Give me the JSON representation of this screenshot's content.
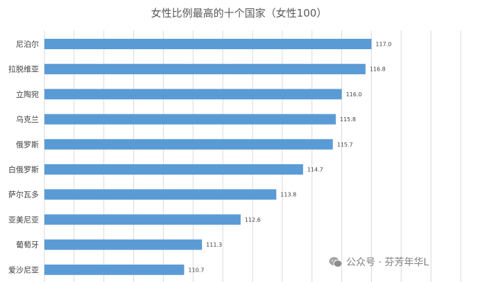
{
  "chart_data": {
    "type": "bar",
    "orientation": "horizontal",
    "title": "女性比例最高的十个国家（女性100）",
    "categories": [
      "尼泊尔",
      "拉脱维亚",
      "立陶宛",
      "乌克兰",
      "俄罗斯",
      "白俄罗斯",
      "萨尔瓦多",
      "亚美尼亚",
      "葡萄牙",
      "爱沙尼亚"
    ],
    "values": [
      117.0,
      116.8,
      116.0,
      115.8,
      115.7,
      114.7,
      113.8,
      112.6,
      111.3,
      110.7
    ],
    "value_labels": [
      "117.0",
      "116.8",
      "116.0",
      "115.8",
      "115.7",
      "114.7",
      "113.8",
      "112.6",
      "111.3",
      "110.7"
    ],
    "xlim": [
      106,
      120
    ],
    "grid": true,
    "colors": {
      "bar": "#5b9bd5",
      "grid": "#d9d9d9"
    }
  },
  "watermark": {
    "text": "公众号 · 芬芳年华L",
    "icon": "wechat-icon"
  }
}
